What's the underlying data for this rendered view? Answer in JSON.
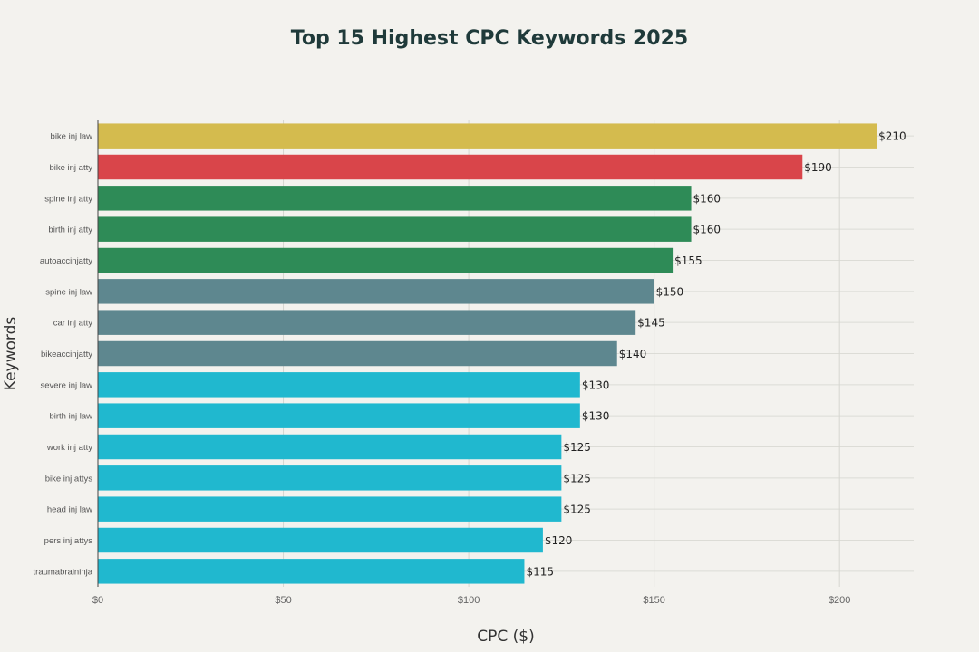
{
  "chart_data": {
    "type": "bar",
    "orientation": "horizontal",
    "title": "Top 15 Highest CPC Keywords 2025",
    "xlabel": "CPC ($)",
    "ylabel": "Keywords",
    "xlim": [
      0,
      220
    ],
    "xticks": [
      {
        "value": 0,
        "label": "$0"
      },
      {
        "value": 50,
        "label": "$50"
      },
      {
        "value": 100,
        "label": "$100"
      },
      {
        "value": 150,
        "label": "$150"
      },
      {
        "value": 200,
        "label": "$200"
      }
    ],
    "grid": true,
    "categories": [
      "bike inj law",
      "bike inj atty",
      "spine inj atty",
      "birth inj atty",
      "autoaccinjatty",
      "spine inj law",
      "car inj atty",
      "bikeaccinjatty",
      "severe inj law",
      "birth inj law",
      "work inj atty",
      "bike inj attys",
      "head inj law",
      "pers inj attys",
      "traumabraininja"
    ],
    "values": [
      210,
      190,
      160,
      160,
      155,
      150,
      145,
      140,
      130,
      130,
      125,
      125,
      125,
      120,
      115
    ],
    "data_labels": [
      "$210",
      "$190",
      "$160",
      "$160",
      "$155",
      "$150",
      "$145",
      "$140",
      "$130",
      "$130",
      "$125",
      "$125",
      "$125",
      "$120",
      "$115"
    ],
    "bar_colors": [
      "#d4bb4e",
      "#d9454a",
      "#2e8b57",
      "#2e8b57",
      "#2e8b57",
      "#5e878f",
      "#5e878f",
      "#5e878f",
      "#20b8cf",
      "#20b8cf",
      "#20b8cf",
      "#20b8cf",
      "#20b8cf",
      "#20b8cf",
      "#20b8cf"
    ]
  }
}
